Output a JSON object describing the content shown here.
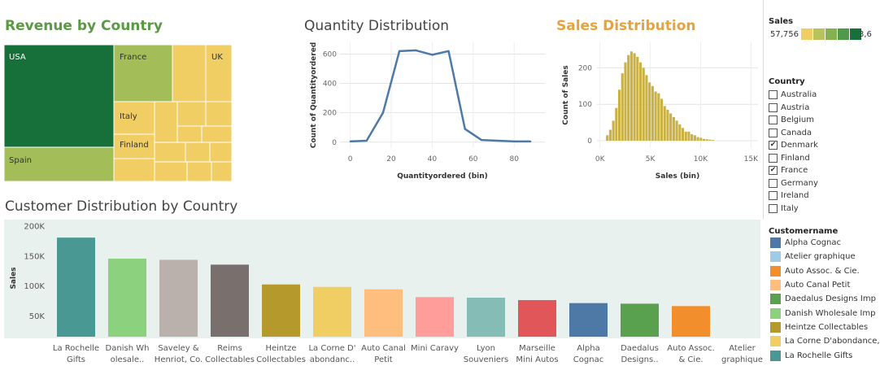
{
  "titles": {
    "revenue": "Revenue by Country",
    "quantity": "Quantity Distribution",
    "sales": "Sales Distribution",
    "customer": "Customer Distribution by Country"
  },
  "colors": {
    "dark_green": "#17703a",
    "light_green": "#a3bd58",
    "yellow": "#f1ce63",
    "line": "#4e79a7",
    "hist": "#c9b243",
    "accent_title_green": "#5a9a45",
    "accent_title_orange": "#e8a23a",
    "bar_panel_bg": "#e9f1ef"
  },
  "sales_legend": {
    "header": "Sales",
    "min_label": "57,756",
    "max_label": "3,6",
    "ramp": [
      "#f1ce63",
      "#b8c35b",
      "#86b150",
      "#4f9a48",
      "#17703a"
    ]
  },
  "country_filter": {
    "header": "Country",
    "items": [
      {
        "label": "Australia",
        "checked": false
      },
      {
        "label": "Austria",
        "checked": false
      },
      {
        "label": "Belgium",
        "checked": false
      },
      {
        "label": "Canada",
        "checked": false
      },
      {
        "label": "Denmark",
        "checked": true
      },
      {
        "label": "Finland",
        "checked": false
      },
      {
        "label": "France",
        "checked": true
      },
      {
        "label": "Germany",
        "checked": false
      },
      {
        "label": "Ireland",
        "checked": false
      },
      {
        "label": "Italy",
        "checked": false
      }
    ]
  },
  "customer_legend": {
    "header": "Customername",
    "items": [
      {
        "label": "Alpha Cognac",
        "color": "#4e79a7"
      },
      {
        "label": "Atelier graphique",
        "color": "#a0cbe8"
      },
      {
        "label": "Auto Assoc. & Cie.",
        "color": "#f28e2b"
      },
      {
        "label": "Auto Canal Petit",
        "color": "#ffbe7d"
      },
      {
        "label": "Daedalus Designs Imp",
        "color": "#59a14f"
      },
      {
        "label": "Danish Wholesale Imp",
        "color": "#8cd17d"
      },
      {
        "label": "Heintze Collectables",
        "color": "#b6992d"
      },
      {
        "label": "La Corne D'abondance,",
        "color": "#f1ce63"
      },
      {
        "label": "La Rochelle Gifts",
        "color": "#499894"
      }
    ]
  },
  "chart_data": [
    {
      "type": "treemap",
      "title": "Revenue by Country",
      "labels": {
        "usa": "USA",
        "spain": "Spain",
        "france": "France",
        "uk": "UK",
        "italy": "Italy",
        "finland": "Finland"
      }
    },
    {
      "type": "line",
      "title": "Quantity Distribution",
      "xlabel": "Quantityordered (bin)",
      "ylabel": "Count of Quantityordered",
      "x": [
        0,
        8,
        16,
        24,
        32,
        40,
        48,
        56,
        64,
        72,
        80,
        88
      ],
      "y": [
        5,
        10,
        200,
        620,
        625,
        595,
        620,
        90,
        15,
        10,
        5,
        5
      ],
      "xlim": [
        -5,
        95
      ],
      "ylim": [
        -40,
        680
      ],
      "xticks": [
        0,
        20,
        40,
        60,
        80
      ],
      "yticks": [
        0,
        200,
        400,
        600
      ]
    },
    {
      "type": "bar",
      "title": "Sales Distribution",
      "xlabel": "Sales (bin)",
      "ylabel": "Count of Sales",
      "bin_width": 300,
      "x_start": 600,
      "values": [
        15,
        30,
        55,
        90,
        140,
        185,
        215,
        235,
        245,
        240,
        230,
        215,
        200,
        180,
        160,
        150,
        135,
        130,
        115,
        95,
        85,
        75,
        65,
        55,
        45,
        35,
        25,
        25,
        18,
        15,
        10,
        8,
        5,
        4,
        3,
        2
      ],
      "xlim": [
        -300,
        15700
      ],
      "ylim": [
        -20,
        270
      ],
      "xticks": [
        0,
        5000,
        10000,
        15000
      ],
      "xticklabels": [
        "0K",
        "5K",
        "10K",
        "15K"
      ],
      "yticks": [
        0,
        100,
        200
      ]
    },
    {
      "type": "bar",
      "title": "Customer Distribution by Country",
      "ylabel": "Sales",
      "categories": [
        [
          "La Rochelle",
          "Gifts"
        ],
        [
          "Danish Wh",
          "olesale.."
        ],
        [
          "Saveley &",
          "Henriot, Co."
        ],
        [
          "Reims",
          "Collectables"
        ],
        [
          "Heintze",
          "Collectables"
        ],
        [
          "La Corne D'",
          "abondanc.."
        ],
        [
          "Auto Canal",
          "Petit"
        ],
        [
          "Mini Caravy",
          ""
        ],
        [
          "Lyon",
          "Souveniers"
        ],
        [
          "Marseille",
          "Mini Autos"
        ],
        [
          "Alpha",
          "Cognac"
        ],
        [
          "Daedalus",
          "Designs.."
        ],
        [
          "Auto Assoc.",
          "& Cie."
        ],
        [
          "Atelier",
          "graphique"
        ]
      ],
      "values": [
        180000,
        145000,
        143000,
        135000,
        102000,
        98000,
        94000,
        81000,
        80000,
        76000,
        71000,
        70000,
        66000,
        0
      ],
      "colors": [
        "#499894",
        "#8cd17d",
        "#bab0ac",
        "#79706e",
        "#b6992d",
        "#f1ce63",
        "#ffbe7d",
        "#ff9d9a",
        "#86bcb6",
        "#e15759",
        "#4e79a7",
        "#59a14f",
        "#f28e2b",
        "#a0cbe8"
      ],
      "ylim": [
        15000,
        210000
      ],
      "yticks": [
        50000,
        100000,
        150000,
        200000
      ],
      "yticklabels": [
        "50K",
        "100K",
        "150K",
        "200K"
      ]
    }
  ]
}
